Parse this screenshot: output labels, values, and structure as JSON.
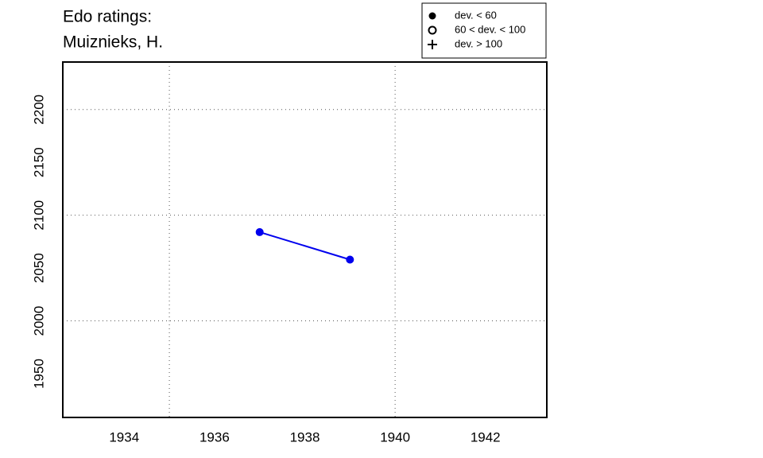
{
  "chart_data": {
    "type": "line",
    "title": [
      "Edo ratings:",
      "Muiznieks, H."
    ],
    "x": [
      1937,
      1939
    ],
    "series": [
      {
        "name": "Muiznieks, H.",
        "color": "#0000ee",
        "values": [
          2084,
          2058
        ]
      }
    ],
    "xlim": [
      1932.64,
      1943.36
    ],
    "xticks": [
      1934,
      1936,
      1938,
      1940,
      1942
    ],
    "ylim": [
      1908.6,
      2245
    ],
    "yticks": [
      1950,
      2000,
      2050,
      2100,
      2150,
      2200
    ],
    "xgrid": [
      1935,
      1940
    ],
    "ygrid": [
      2000,
      2100,
      2200
    ],
    "legend": {
      "position": "top-right",
      "items": [
        {
          "label": "dev. < 60",
          "symbol": "filled-circle"
        },
        {
          "label": "60 < dev. < 100",
          "symbol": "open-circle"
        },
        {
          "label": "dev. > 100",
          "symbol": "plus"
        }
      ]
    }
  }
}
